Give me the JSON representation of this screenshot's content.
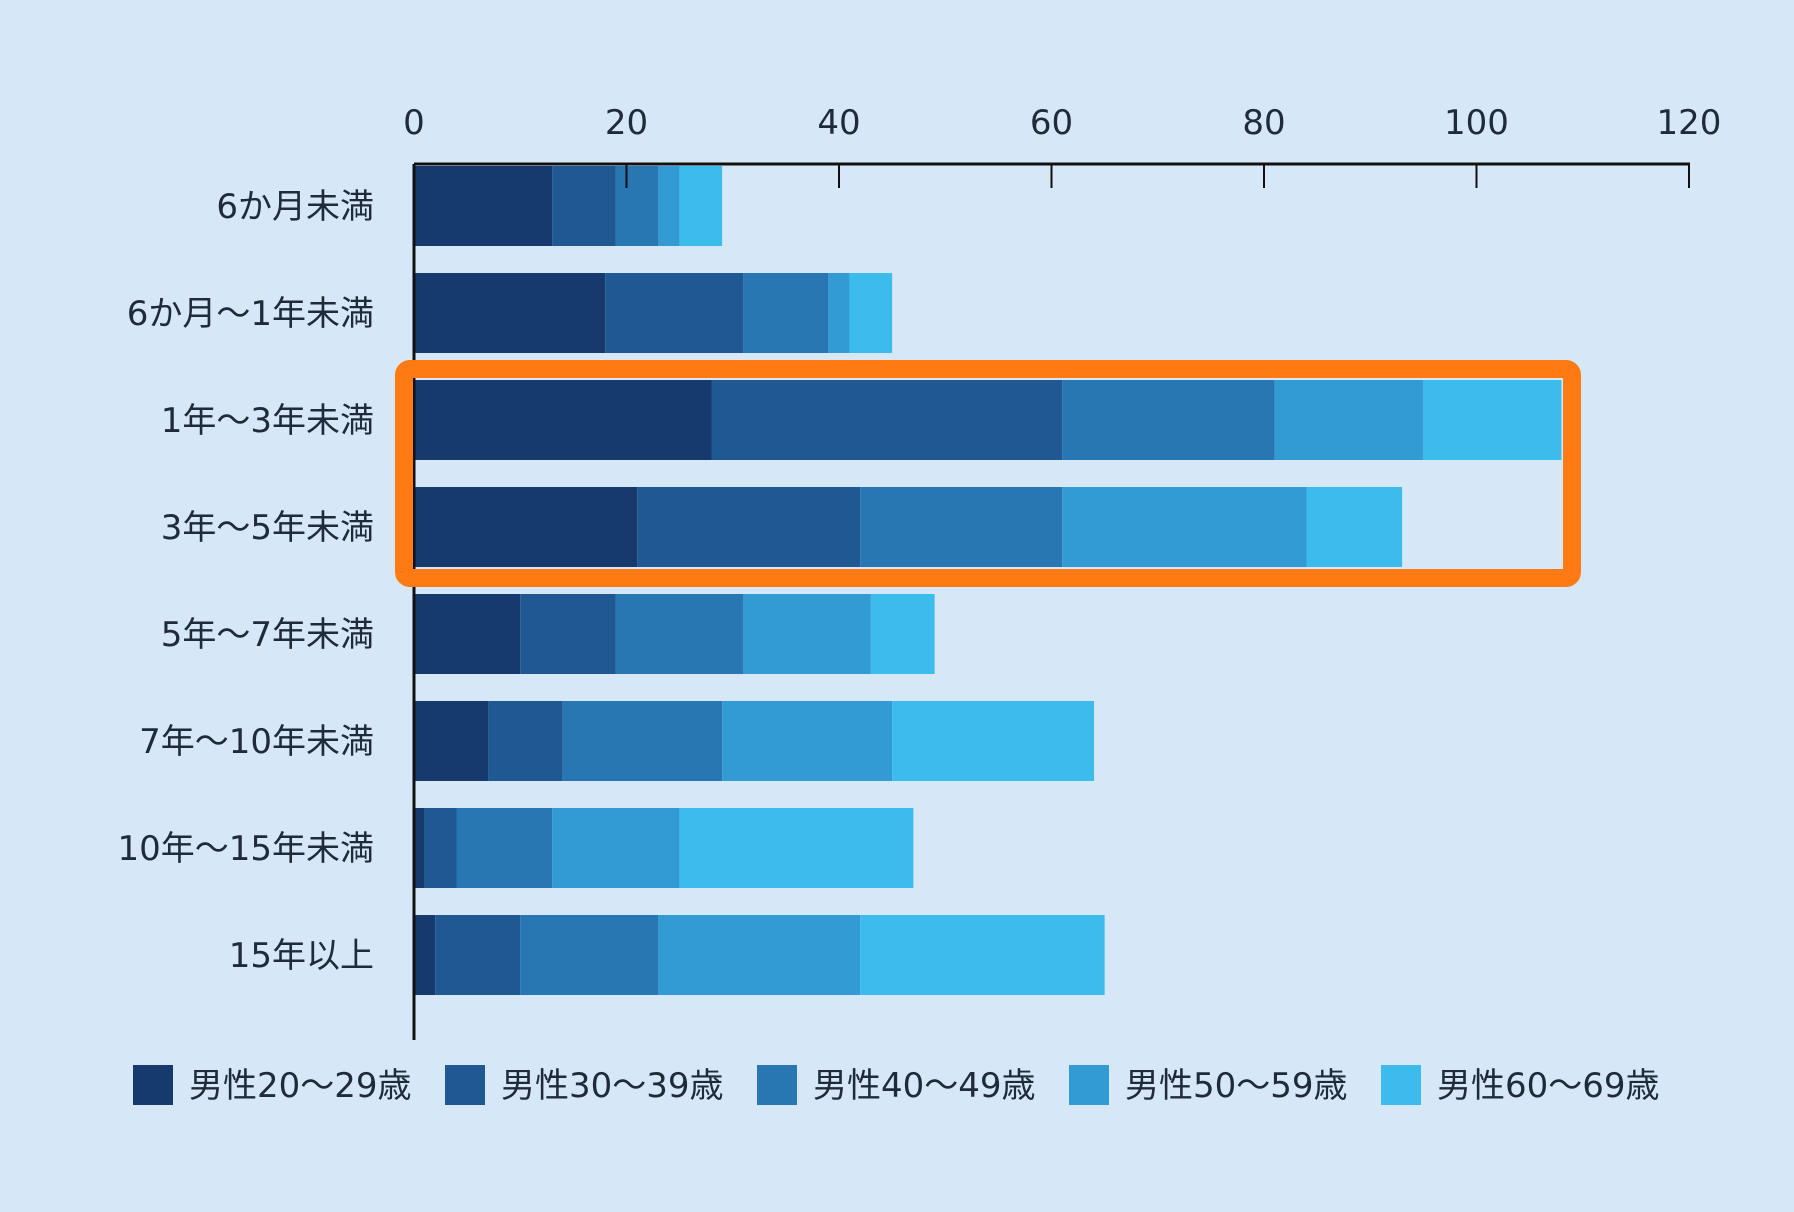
{
  "chart_data": {
    "type": "bar",
    "orientation": "horizontal",
    "stacked": true,
    "title": "",
    "xlabel": "",
    "ylabel": "",
    "xlim": [
      0,
      120
    ],
    "x_ticks": [
      0,
      20,
      40,
      60,
      80,
      100,
      120
    ],
    "x_axis_position": "top",
    "grid": false,
    "legend_position": "bottom",
    "categories": [
      "6か月未満",
      "6か月〜1年未満",
      "1年〜3年未満",
      "3年〜5年未満",
      "5年〜7年未満",
      "7年〜10年未満",
      "10年〜15年未満",
      "15年以上"
    ],
    "series": [
      {
        "name": "男性20〜29歳",
        "color": "#173a6e",
        "values": [
          13,
          18,
          28,
          21,
          10,
          7,
          1,
          2
        ]
      },
      {
        "name": "男性30〜39歳",
        "color": "#1f5892",
        "values": [
          6,
          13,
          33,
          21,
          9,
          7,
          3,
          8
        ]
      },
      {
        "name": "男性40〜49歳",
        "color": "#2877b3",
        "values": [
          4,
          8,
          20,
          19,
          12,
          15,
          9,
          13
        ]
      },
      {
        "name": "男性50〜59歳",
        "color": "#339bd4",
        "values": [
          2,
          2,
          14,
          23,
          12,
          16,
          12,
          19
        ]
      },
      {
        "name": "男性60〜69歳",
        "color": "#3bbced",
        "values": [
          4,
          4,
          13,
          9,
          6,
          19,
          22,
          23
        ]
      }
    ],
    "highlight": {
      "categories": [
        "1年〜3年未満",
        "3年〜5年未満"
      ],
      "color": "#ff7a12"
    }
  }
}
